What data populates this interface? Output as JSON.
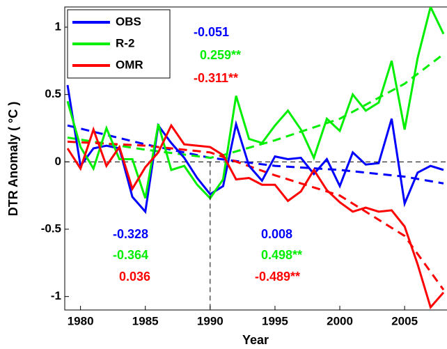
{
  "chart_data": {
    "type": "line",
    "x_label": "Year",
    "y_label": "DTR Anomaly ( °C )",
    "x": [
      1979,
      1980,
      1981,
      1982,
      1983,
      1984,
      1985,
      1986,
      1987,
      1988,
      1989,
      1990,
      1991,
      1992,
      1993,
      1994,
      1995,
      1996,
      1997,
      1998,
      1999,
      2000,
      2001,
      2002,
      2003,
      2004,
      2005,
      2006,
      2007,
      2008
    ],
    "series": [
      {
        "name": "OBS",
        "color": "#0000ff",
        "values": [
          0.57,
          -0.03,
          0.1,
          0.12,
          0.1,
          -0.26,
          -0.37,
          0.27,
          0.14,
          0.03,
          -0.12,
          -0.24,
          -0.18,
          0.28,
          -0.03,
          -0.14,
          0.04,
          0.02,
          0.03,
          -0.09,
          0.02,
          -0.18,
          0.07,
          -0.02,
          -0.01,
          0.32,
          -0.31,
          -0.08,
          -0.03,
          -0.06
        ]
      },
      {
        "name": "R-2",
        "color": "#00ee00",
        "values": [
          0.45,
          0.11,
          -0.05,
          0.25,
          0.02,
          0.02,
          -0.27,
          0.28,
          -0.06,
          -0.03,
          -0.17,
          -0.27,
          -0.13,
          0.49,
          0.17,
          0.14,
          0.27,
          0.38,
          0.24,
          0.03,
          0.32,
          0.23,
          0.5,
          0.38,
          0.44,
          0.75,
          0.24,
          0.77,
          1.15,
          0.95
        ]
      },
      {
        "name": "OMR",
        "color": "#ff0000",
        "values": [
          0.1,
          -0.05,
          0.24,
          -0.03,
          0.11,
          -0.2,
          -0.04,
          0.07,
          0.27,
          0.13,
          0.12,
          0.11,
          0.05,
          -0.13,
          -0.12,
          -0.17,
          -0.17,
          -0.29,
          -0.22,
          -0.06,
          -0.21,
          -0.3,
          -0.37,
          -0.34,
          -0.37,
          -0.36,
          -0.48,
          -0.76,
          -1.08,
          -0.97
        ]
      }
    ],
    "trend_lines": [
      {
        "color": "#0000ff",
        "x": [
          1979,
          1985,
          1990,
          1995,
          2000,
          2005,
          2008
        ],
        "values": [
          0.27,
          0.13,
          0.03,
          -0.03,
          -0.06,
          -0.11,
          -0.16
        ]
      },
      {
        "color": "#00ee00",
        "x": [
          1979,
          1985,
          1990,
          1991,
          1995,
          2000,
          2005,
          2008
        ],
        "values": [
          0.18,
          0.09,
          0.03,
          0.05,
          0.16,
          0.32,
          0.58,
          0.8
        ]
      },
      {
        "color": "#ff0000",
        "x": [
          1979,
          1985,
          1990,
          1995,
          2000,
          2005,
          2008
        ],
        "values": [
          0.15,
          0.12,
          0.07,
          -0.1,
          -0.25,
          -0.55,
          -0.95
        ]
      }
    ],
    "annotations": [
      {
        "text": "-0.051",
        "color": "#0000ff"
      },
      {
        "text": "0.259**",
        "color": "#00ee00"
      },
      {
        "text": "-0.311**",
        "color": "#ff0000"
      },
      {
        "text": "-0.328",
        "color": "#0000ff"
      },
      {
        "text": "-0.364",
        "color": "#00ee00"
      },
      {
        "text": "0.036",
        "color": "#ff0000"
      },
      {
        "text": "0.008",
        "color": "#0000ff"
      },
      {
        "text": "0.498**",
        "color": "#00ee00"
      },
      {
        "text": "-0.489**",
        "color": "#ff0000"
      }
    ],
    "xlim": [
      1979,
      2008
    ],
    "ylim": [
      -1.1,
      1.15
    ],
    "xticks": [
      1980,
      1985,
      1990,
      1995,
      2000,
      2005
    ],
    "yticks": [
      -1,
      -0.5,
      0,
      0.5,
      1
    ],
    "reference_x": 1990,
    "reference_y": 0,
    "legend": "upper left"
  }
}
